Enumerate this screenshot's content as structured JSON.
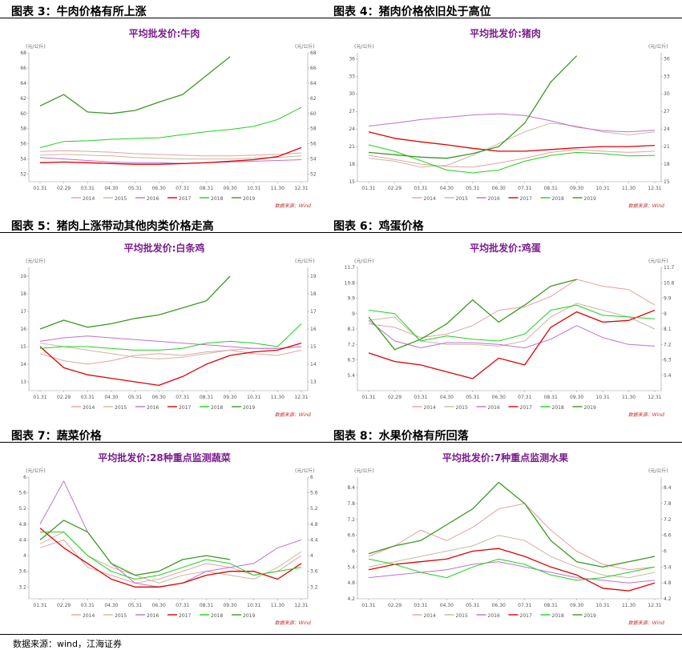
{
  "panels": [
    {
      "figure_title": "图表 3：牛肉价格有所上涨",
      "chart_title": "平均批发价:牛肉",
      "unit_left": "(元/公斤)",
      "unit_right": "(元/公斤)",
      "source_note": "数据来源：Wind"
    },
    {
      "figure_title": "图表 4：猪肉价格依旧处于高位",
      "chart_title": "平均批发价:猪肉",
      "unit_left": "(元/公斤)",
      "unit_right": "(元/公斤)",
      "source_note": "数据来源：Wind"
    },
    {
      "figure_title": "图表 5：猪肉上涨带动其他肉类价格走高",
      "chart_title": "平均批发价:白条鸡",
      "unit_left": "(元/公斤)",
      "unit_right": "(元/公斤)",
      "source_note": "数据来源：Wind"
    },
    {
      "figure_title": "图表 6：鸡蛋价格",
      "chart_title": "平均批发价:鸡蛋",
      "unit_left": "(元/公斤)",
      "unit_right": "(元/公斤)",
      "source_note": "数据来源：Wind"
    },
    {
      "figure_title": "图表 7：蔬菜价格",
      "chart_title": "平均批发价:28种重点监测蔬菜",
      "unit_left": "(元/公斤)",
      "unit_right": "(元/公斤)",
      "source_note": "数据来源：Wind"
    },
    {
      "figure_title": "图表 8：水果价格有所回落",
      "chart_title": "平均批发价:7种重点监测水果",
      "unit_left": "(元/公斤)",
      "unit_right": "(元/公斤)",
      "source_note": "数据来源：Wind"
    }
  ],
  "footer": {
    "source": "数据来源：wind，江海证券"
  },
  "chart_data": [
    {
      "type": "line",
      "title": "平均批发价:牛肉",
      "x": [
        "01.31",
        "02.29",
        "03.31",
        "04.30",
        "05.31",
        "06.30",
        "07.31",
        "08.31",
        "09.30",
        "10.31",
        "11.30",
        "12.31"
      ],
      "ylim": [
        51,
        68
      ],
      "yticks": [
        52,
        54,
        56,
        58,
        60,
        62,
        64,
        66,
        68
      ],
      "colors": [
        "#e8a0a0",
        "#c9b9a0",
        "#c070d0",
        "#e00000",
        "#20d020",
        "#3a9a20"
      ],
      "series": [
        {
          "name": "2014",
          "values": [
            55.0,
            55.1,
            55.0,
            54.9,
            54.7,
            54.6,
            54.5,
            54.4,
            54.4,
            54.5,
            54.6,
            54.8
          ]
        },
        {
          "name": "2015",
          "values": [
            54.5,
            54.6,
            54.5,
            54.4,
            54.2,
            54.1,
            54.0,
            54.0,
            54.0,
            54.1,
            54.2,
            54.4
          ]
        },
        {
          "name": "2016",
          "values": [
            54.2,
            54.0,
            53.8,
            53.6,
            53.5,
            53.5,
            53.4,
            53.5,
            53.6,
            53.7,
            53.8,
            53.9
          ]
        },
        {
          "name": "2017",
          "values": [
            53.5,
            53.6,
            53.5,
            53.4,
            53.3,
            53.3,
            53.4,
            53.5,
            53.7,
            53.9,
            54.3,
            55.5
          ]
        },
        {
          "name": "2018",
          "values": [
            55.5,
            56.3,
            56.4,
            56.6,
            56.7,
            56.8,
            57.2,
            57.6,
            57.9,
            58.3,
            59.2,
            60.8
          ]
        },
        {
          "name": "2019",
          "values": [
            61.0,
            62.5,
            60.2,
            60.0,
            60.4,
            61.5,
            62.5,
            65.0,
            67.5,
            null,
            null,
            null
          ]
        }
      ]
    },
    {
      "type": "line",
      "title": "平均批发价:猪肉",
      "x": [
        "01.31",
        "02.29",
        "03.31",
        "04.30",
        "05.31",
        "06.30",
        "07.31",
        "08.31",
        "09.30",
        "10.31",
        "11.30",
        "12.31"
      ],
      "ylim": [
        15,
        37
      ],
      "yticks": [
        15,
        18,
        21,
        24,
        27,
        30,
        33,
        36
      ],
      "colors": [
        "#e8a0a0",
        "#c9b9a0",
        "#c070d0",
        "#e00000",
        "#20d020",
        "#3a9a20"
      ],
      "series": [
        {
          "name": "2014",
          "values": [
            19.5,
            18.8,
            18.0,
            17.6,
            17.5,
            18.2,
            19.0,
            20.0,
            20.5,
            20.2,
            20.0,
            20.2
          ]
        },
        {
          "name": "2015",
          "values": [
            19.0,
            18.5,
            17.5,
            17.8,
            19.5,
            21.5,
            23.5,
            25.0,
            24.5,
            23.5,
            23.0,
            23.5
          ]
        },
        {
          "name": "2016",
          "values": [
            24.5,
            25.0,
            25.6,
            26.0,
            26.4,
            26.6,
            26.3,
            25.4,
            24.3,
            23.7,
            23.5,
            23.8
          ]
        },
        {
          "name": "2017",
          "values": [
            23.5,
            22.4,
            21.8,
            21.3,
            20.7,
            20.2,
            20.2,
            20.5,
            20.8,
            21.0,
            21.0,
            21.2
          ]
        },
        {
          "name": "2018",
          "values": [
            21.3,
            20.2,
            18.6,
            17.0,
            16.5,
            17.0,
            18.5,
            19.5,
            20.0,
            19.8,
            19.4,
            19.5
          ]
        },
        {
          "name": "2019",
          "values": [
            20.0,
            19.6,
            19.2,
            19.0,
            19.8,
            21.0,
            25.0,
            32.0,
            36.5,
            null,
            null,
            null
          ]
        }
      ]
    },
    {
      "type": "line",
      "title": "平均批发价:白条鸡",
      "x": [
        "01.31",
        "02.29",
        "03.31",
        "04.30",
        "05.31",
        "06.30",
        "07.31",
        "08.31",
        "09.30",
        "10.31",
        "11.30",
        "12.31"
      ],
      "ylim": [
        12.5,
        19.5
      ],
      "yticks": [
        13,
        14,
        15,
        16,
        17,
        18,
        19
      ],
      "colors": [
        "#e8a0a0",
        "#c9b9a0",
        "#c070d0",
        "#e00000",
        "#20d020",
        "#3a9a20"
      ],
      "series": [
        {
          "name": "2014",
          "values": [
            14.6,
            14.2,
            14.0,
            14.2,
            14.5,
            14.6,
            14.5,
            14.7,
            14.8,
            14.6,
            14.5,
            14.8
          ]
        },
        {
          "name": "2015",
          "values": [
            15.2,
            15.0,
            14.8,
            14.6,
            14.4,
            14.3,
            14.4,
            14.6,
            14.8,
            14.9,
            14.9,
            15.0
          ]
        },
        {
          "name": "2016",
          "values": [
            15.3,
            15.5,
            15.6,
            15.5,
            15.4,
            15.3,
            15.2,
            15.1,
            15.0,
            14.9,
            14.9,
            15.0
          ]
        },
        {
          "name": "2017",
          "values": [
            15.0,
            13.8,
            13.4,
            13.2,
            13.0,
            12.8,
            13.3,
            14.0,
            14.5,
            14.7,
            14.8,
            15.2
          ]
        },
        {
          "name": "2018",
          "values": [
            14.9,
            15.0,
            15.0,
            14.9,
            14.8,
            14.8,
            14.9,
            15.2,
            15.3,
            15.2,
            15.0,
            16.3
          ]
        },
        {
          "name": "2019",
          "values": [
            16.0,
            16.5,
            16.1,
            16.3,
            16.6,
            16.8,
            17.2,
            17.6,
            19.0,
            null,
            null,
            null
          ]
        }
      ]
    },
    {
      "type": "line",
      "title": "平均批发价:鸡蛋",
      "x": [
        "01.31",
        "02.29",
        "03.31",
        "04.30",
        "05.31",
        "06.30",
        "07.31",
        "08.31",
        "09.30",
        "10.31",
        "11.30",
        "12.31"
      ],
      "ylim": [
        4.5,
        11.7
      ],
      "yticks": [
        5.4,
        6.3,
        7.2,
        8.1,
        9.0,
        9.9,
        10.8,
        11.7
      ],
      "colors": [
        "#e8a0a0",
        "#c9b9a0",
        "#c070d0",
        "#e00000",
        "#20d020",
        "#3a9a20"
      ],
      "series": [
        {
          "name": "2014",
          "values": [
            8.4,
            8.2,
            7.6,
            7.8,
            8.3,
            9.2,
            9.4,
            10.0,
            11.0,
            10.6,
            10.4,
            9.5
          ]
        },
        {
          "name": "2015",
          "values": [
            8.6,
            8.8,
            7.4,
            7.2,
            7.2,
            7.1,
            7.4,
            8.8,
            9.6,
            9.2,
            8.8,
            8.1
          ]
        },
        {
          "name": "2016",
          "values": [
            8.6,
            7.4,
            7.0,
            7.3,
            7.3,
            7.2,
            7.0,
            7.5,
            8.3,
            7.6,
            7.2,
            7.1
          ]
        },
        {
          "name": "2017",
          "values": [
            6.7,
            6.2,
            6.0,
            5.6,
            5.2,
            6.4,
            6.0,
            8.2,
            9.1,
            8.5,
            8.6,
            9.2
          ]
        },
        {
          "name": "2018",
          "values": [
            9.2,
            9.0,
            7.4,
            7.7,
            7.5,
            7.4,
            7.8,
            9.2,
            9.5,
            8.9,
            8.8,
            8.7
          ]
        },
        {
          "name": "2019",
          "values": [
            8.8,
            6.9,
            7.5,
            8.4,
            9.8,
            8.5,
            9.5,
            10.6,
            11.0,
            null,
            null,
            null
          ]
        }
      ]
    },
    {
      "type": "line",
      "title": "平均批发价:28种重点监测蔬菜",
      "x": [
        "01.31",
        "02.29",
        "03.31",
        "04.30",
        "05.31",
        "06.30",
        "07.31",
        "08.31",
        "09.30",
        "10.31",
        "11.30",
        "12.31"
      ],
      "ylim": [
        2.9,
        6.0
      ],
      "yticks": [
        3.2,
        3.6,
        4.0,
        4.4,
        4.8,
        5.2,
        5.6,
        6.0
      ],
      "colors": [
        "#e8a0a0",
        "#c9b9a0",
        "#c070d0",
        "#e00000",
        "#20d020",
        "#3a9a20"
      ],
      "series": [
        {
          "name": "2014",
          "values": [
            4.2,
            4.4,
            3.7,
            3.5,
            3.3,
            3.4,
            3.6,
            3.8,
            3.7,
            3.5,
            3.6,
            4.0
          ]
        },
        {
          "name": "2015",
          "values": [
            4.3,
            4.6,
            4.0,
            3.7,
            3.5,
            3.3,
            3.5,
            3.6,
            3.5,
            3.4,
            3.7,
            4.1
          ]
        },
        {
          "name": "2016",
          "values": [
            4.8,
            5.9,
            4.6,
            3.8,
            3.3,
            3.2,
            3.3,
            3.6,
            3.7,
            3.8,
            4.2,
            4.4
          ]
        },
        {
          "name": "2017",
          "values": [
            4.7,
            4.2,
            3.8,
            3.4,
            3.2,
            3.2,
            3.3,
            3.5,
            3.6,
            3.6,
            3.4,
            3.8
          ]
        },
        {
          "name": "2018",
          "values": [
            4.6,
            4.6,
            4.0,
            3.6,
            3.4,
            3.5,
            3.7,
            3.9,
            3.8,
            3.5,
            3.6,
            3.7
          ]
        },
        {
          "name": "2019",
          "values": [
            4.4,
            4.9,
            4.6,
            3.8,
            3.5,
            3.6,
            3.9,
            4.0,
            3.9,
            null,
            null,
            null
          ]
        }
      ]
    },
    {
      "type": "line",
      "title": "平均批发价:7种重点监测水果",
      "x": [
        "01.31",
        "02.29",
        "03.31",
        "04.30",
        "05.31",
        "06.30",
        "07.31",
        "08.31",
        "09.30",
        "10.31",
        "11.30",
        "12.31"
      ],
      "ylim": [
        4.2,
        8.8
      ],
      "yticks": [
        4.2,
        4.8,
        5.4,
        6.0,
        6.6,
        7.2,
        7.8,
        8.4
      ],
      "colors": [
        "#e8a0a0",
        "#c9b9a0",
        "#c070d0",
        "#e00000",
        "#20d020",
        "#3a9a20"
      ],
      "series": [
        {
          "name": "2014",
          "values": [
            5.8,
            6.2,
            6.8,
            6.4,
            6.9,
            7.6,
            7.8,
            6.8,
            6.0,
            5.5,
            5.3,
            5.4
          ]
        },
        {
          "name": "2015",
          "values": [
            5.4,
            5.6,
            5.8,
            6.0,
            6.2,
            6.6,
            6.4,
            5.8,
            5.4,
            5.1,
            5.0,
            5.2
          ]
        },
        {
          "name": "2016",
          "values": [
            5.0,
            5.1,
            5.2,
            5.3,
            5.5,
            5.6,
            5.4,
            5.2,
            5.0,
            4.9,
            4.8,
            4.9
          ]
        },
        {
          "name": "2017",
          "values": [
            5.3,
            5.5,
            5.6,
            5.7,
            6.0,
            6.1,
            5.8,
            5.4,
            5.1,
            4.6,
            4.5,
            4.8
          ]
        },
        {
          "name": "2018",
          "values": [
            5.7,
            5.5,
            5.2,
            5.0,
            5.4,
            5.7,
            5.5,
            5.1,
            4.9,
            5.0,
            5.2,
            5.4
          ]
        },
        {
          "name": "2019",
          "values": [
            5.9,
            6.2,
            6.4,
            7.0,
            7.6,
            8.6,
            7.8,
            6.4,
            5.6,
            5.4,
            5.6,
            5.8
          ]
        }
      ]
    }
  ]
}
